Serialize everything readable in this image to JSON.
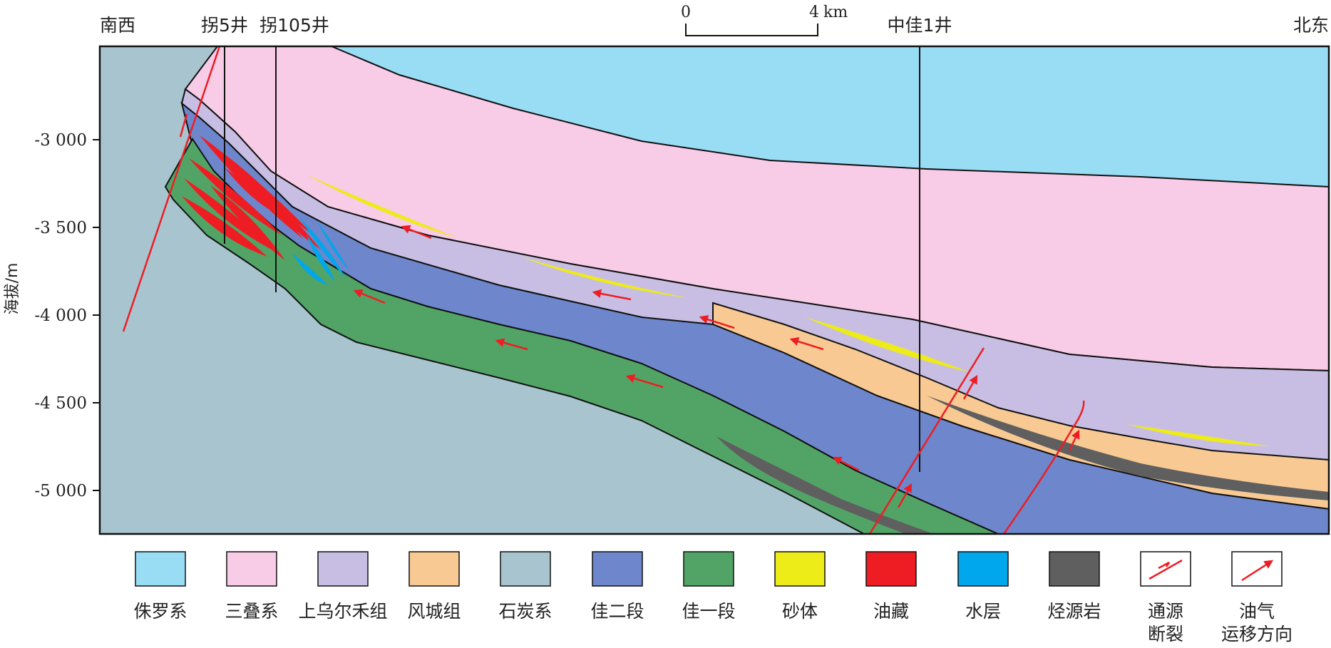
{
  "orientation": {
    "left": "南西",
    "right": "北东"
  },
  "wells": [
    {
      "name": "拐5井"
    },
    {
      "name": "拐105井"
    },
    {
      "name": "中佳1井"
    }
  ],
  "scale_bar": {
    "start": "0",
    "end": "4",
    "unit": "km"
  },
  "y_axis": {
    "label": "海拔/m",
    "ticks": [
      "-3 000",
      "-3 500",
      "-4 000",
      "-4 500",
      "-5 000"
    ]
  },
  "legend": [
    {
      "label": "侏罗系",
      "color": "#99DDF5"
    },
    {
      "label": "三叠系",
      "color": "#F8CBE6"
    },
    {
      "label": "上乌尔禾组",
      "color": "#C8BEE4"
    },
    {
      "label": "风城组",
      "color": "#F8C992"
    },
    {
      "label": "石炭系",
      "color": "#A8C4CF"
    },
    {
      "label": "佳二段",
      "color": "#6E86CB"
    },
    {
      "label": "佳一段",
      "color": "#52A466"
    },
    {
      "label": "砂体",
      "color": "#EDEB18"
    },
    {
      "label": "油藏",
      "color": "#EE1D24"
    },
    {
      "label": "水层",
      "color": "#00A7EC"
    },
    {
      "label": "烃源岩",
      "color": "#5F5F60"
    },
    {
      "label_lines": [
        "通源",
        "断裂"
      ],
      "icon": "fault-symbol-icon"
    },
    {
      "label_lines": [
        "油气",
        "运移方向"
      ],
      "icon": "migration-arrow-icon"
    }
  ]
}
